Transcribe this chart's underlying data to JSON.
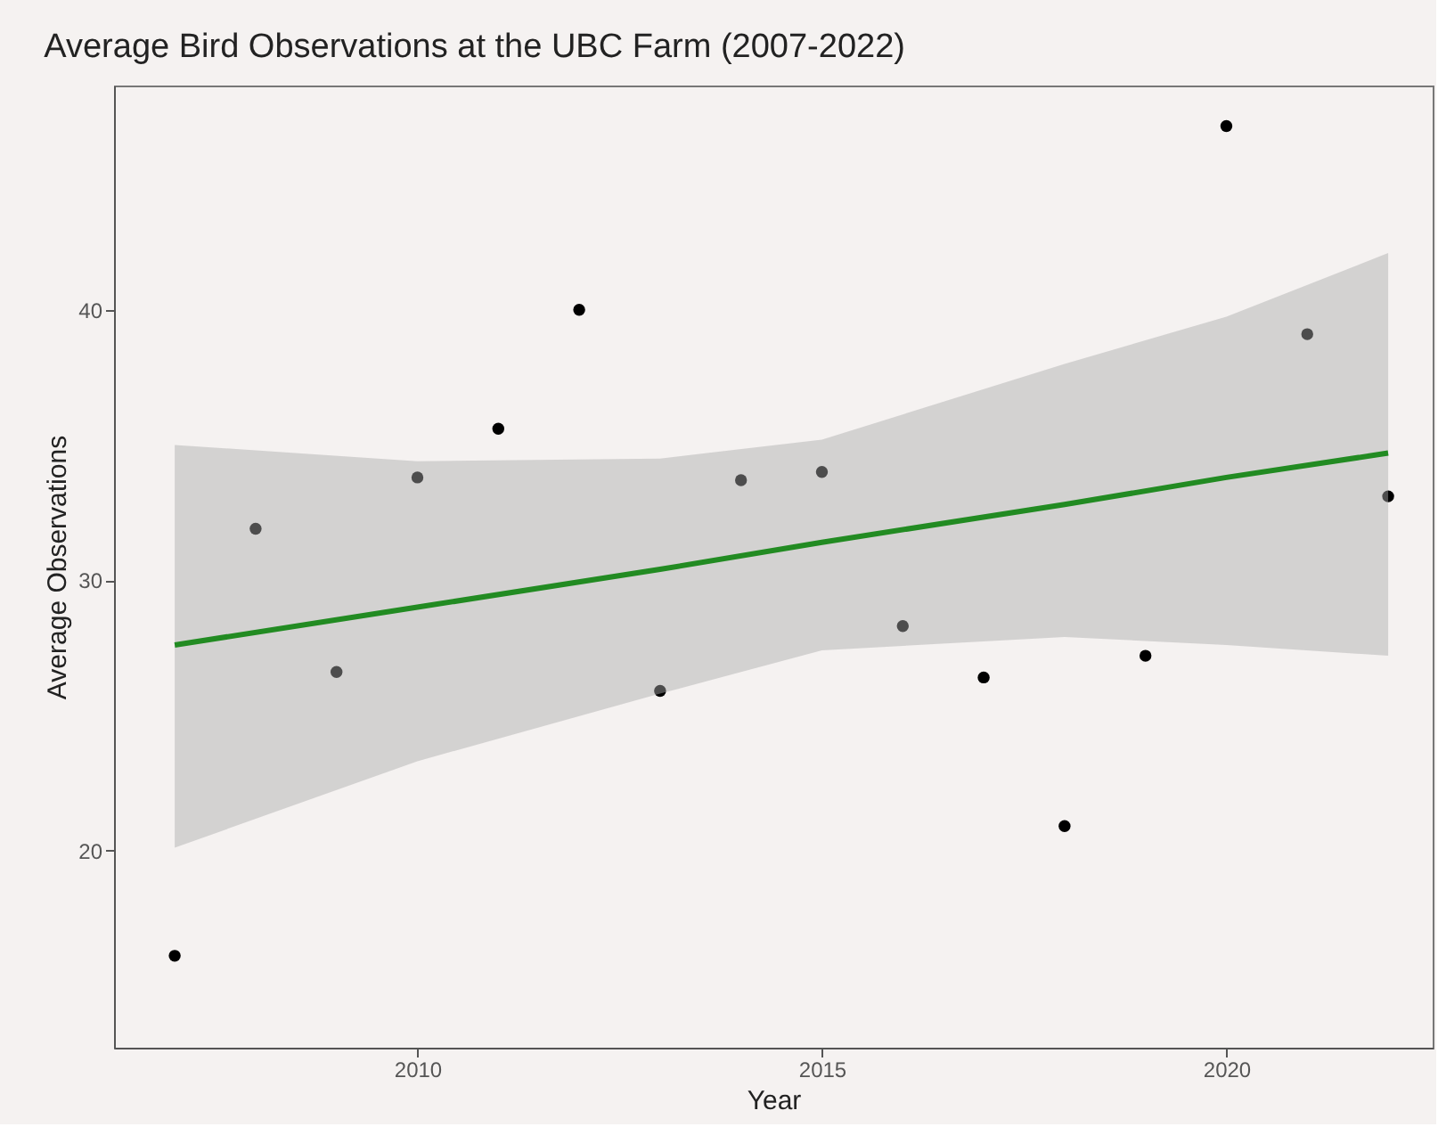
{
  "chart_data": {
    "type": "scatter",
    "title": "Average Bird Observations at the UBC Farm (2007-2022)",
    "xlabel": "Year",
    "ylabel": "Average Observations",
    "x": [
      2007,
      2008,
      2009,
      2010,
      2011,
      2012,
      2013,
      2014,
      2015,
      2016,
      2017,
      2018,
      2019,
      2020,
      2021,
      2022
    ],
    "series": [
      {
        "marker": "circle",
        "color": "#000000",
        "values": [
          16.1,
          31.9,
          26.6,
          33.8,
          35.6,
          40.0,
          25.9,
          33.7,
          34.0,
          28.3,
          26.4,
          20.9,
          27.2,
          46.8,
          39.1,
          33.1
        ]
      },
      {
        "type": "line",
        "marker": "none",
        "color": "#228b22",
        "x": [
          2007,
          2010,
          2013,
          2015,
          2018,
          2020,
          2022
        ],
        "values": [
          27.6,
          29.0,
          30.4,
          31.4,
          32.8,
          33.8,
          34.7
        ],
        "lower": [
          20.1,
          23.3,
          25.8,
          27.4,
          27.9,
          27.6,
          27.2
        ],
        "upper": [
          35.0,
          34.4,
          34.5,
          35.2,
          38.0,
          39.75,
          42.1
        ]
      }
    ],
    "xlim": [
      2006.25,
      2022.55
    ],
    "ylim": [
      12.7,
      48.3
    ],
    "xticks": [
      2010,
      2015,
      2020
    ],
    "yticks": [
      20,
      30,
      40
    ],
    "grid": false
  }
}
